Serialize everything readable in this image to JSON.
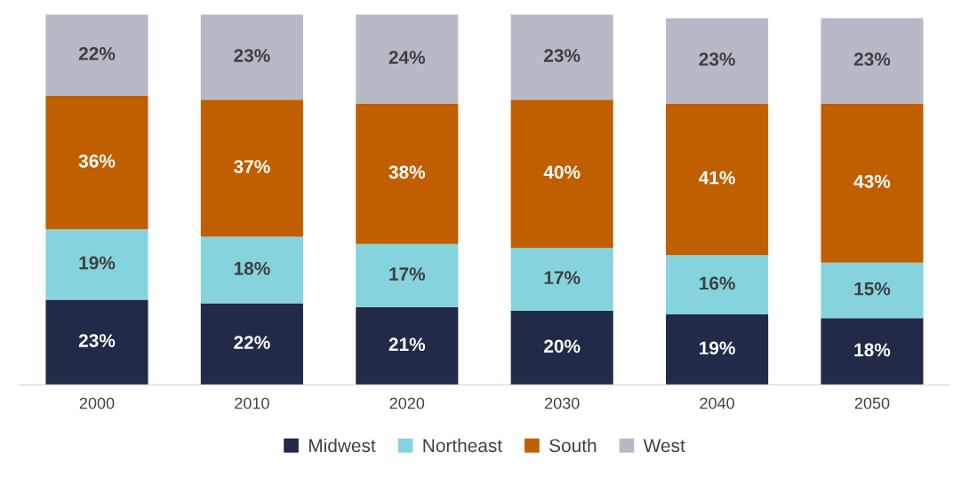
{
  "chart_data": {
    "type": "bar",
    "stacked": true,
    "legend": "bottom",
    "grid": false,
    "categories": [
      "2000",
      "2010",
      "2020",
      "2030",
      "2040",
      "2050"
    ],
    "series": [
      {
        "name": "Midwest",
        "color": "#222a48",
        "values": [
          23,
          22,
          21,
          20,
          19,
          18
        ],
        "value_labels": [
          "23%",
          "22%",
          "21%",
          "20%",
          "19%",
          "18%"
        ]
      },
      {
        "name": "Northeast",
        "color": "#85d3dc",
        "values": [
          19,
          18,
          17,
          17,
          16,
          15
        ],
        "value_labels": [
          "19%",
          "18%",
          "17%",
          "17%",
          "16%",
          "15%"
        ]
      },
      {
        "name": "South",
        "color": "#c05f00",
        "values": [
          36,
          37,
          38,
          40,
          41,
          43
        ],
        "value_labels": [
          "36%",
          "37%",
          "38%",
          "40%",
          "41%",
          "43%"
        ]
      },
      {
        "name": "West",
        "color": "#b8b9c6",
        "values": [
          22,
          23,
          24,
          23,
          23,
          23
        ],
        "value_labels": [
          "22%",
          "23%",
          "24%",
          "23%",
          "23%",
          "23%"
        ]
      }
    ]
  }
}
